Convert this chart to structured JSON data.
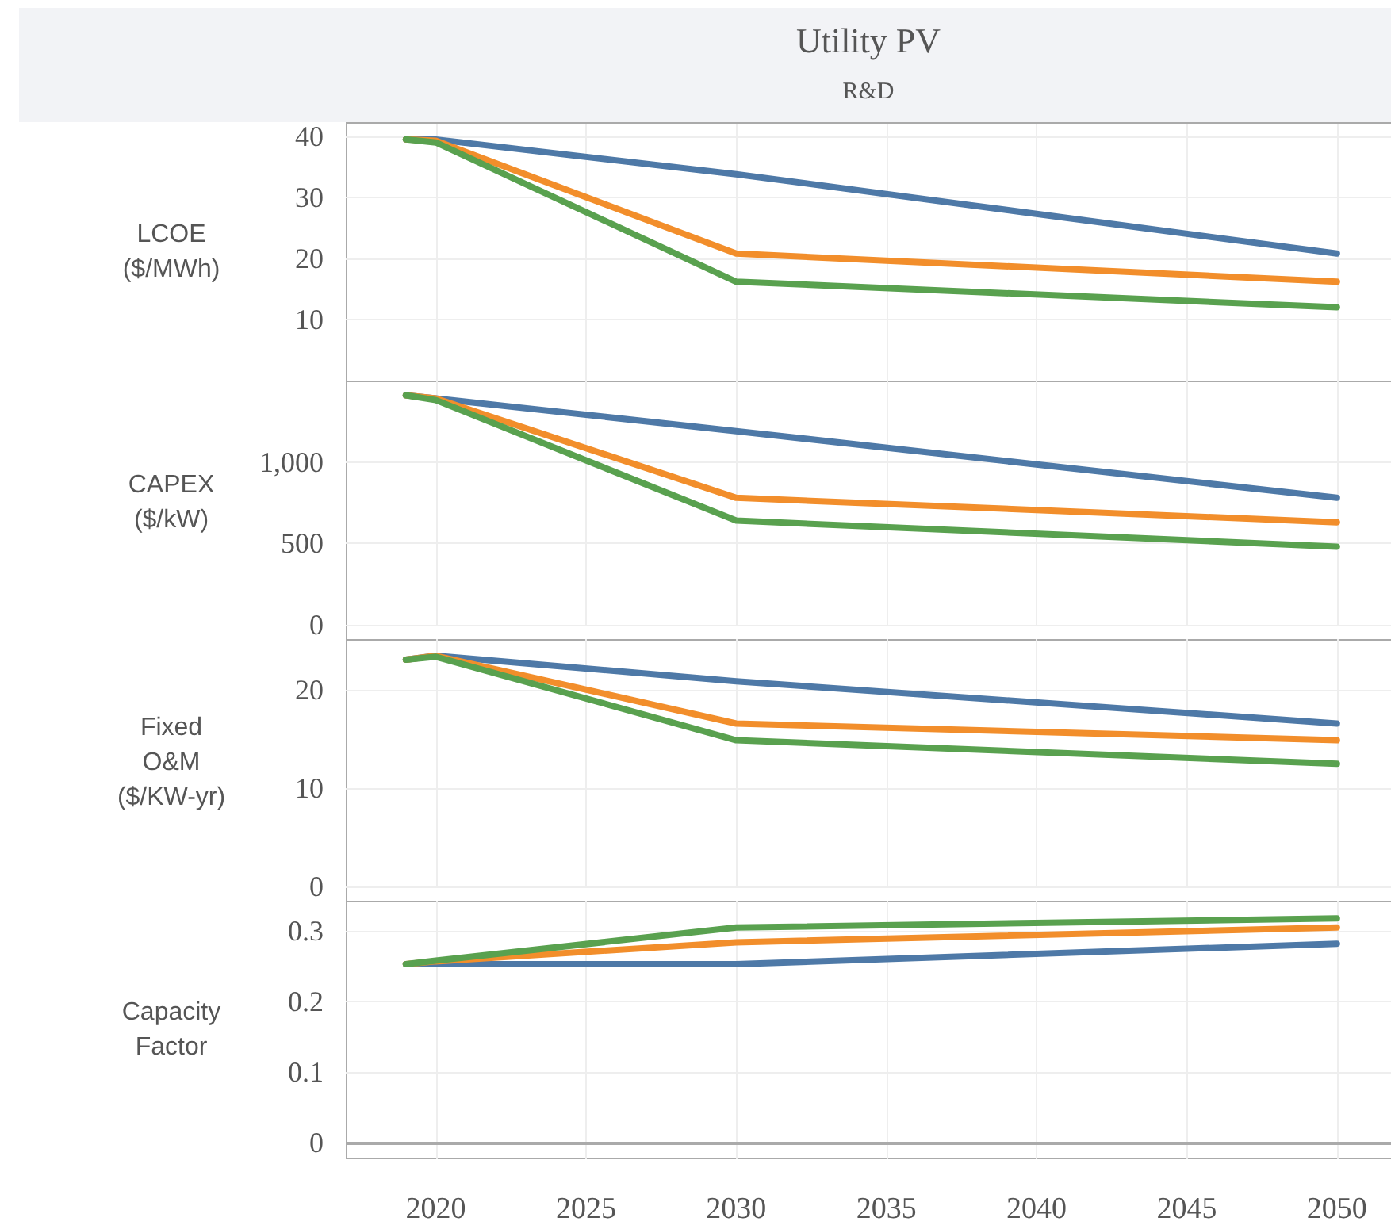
{
  "chart_data": [
    {
      "type": "line",
      "title": "Utility PV",
      "subtitle": "R&D",
      "ylabel": "LCOE\n($/MWh)",
      "x": [
        2019,
        2020,
        2030,
        2050
      ],
      "xlim": [
        2017,
        2051.8
      ],
      "xticks": [
        2020,
        2025,
        2030,
        2035,
        2040,
        2045,
        2050
      ],
      "ylim": [
        0,
        42
      ],
      "yticks": [
        10,
        20,
        30,
        40
      ],
      "grid": true,
      "marker": "none",
      "line_style": "solid",
      "tick_labels": "y",
      "series": [
        {
          "color": "#4e79a7",
          "values": [
            39.5,
            39.5,
            33.8,
            20.8
          ]
        },
        {
          "color": "#f28e2b",
          "values": [
            39.5,
            39.3,
            20.8,
            16.2
          ]
        },
        {
          "color": "#59a14f",
          "values": [
            39.5,
            39,
            16.2,
            12
          ]
        }
      ]
    },
    {
      "type": "line",
      "ylabel": "CAPEX\n($/kW)",
      "x": [
        2019,
        2020,
        2030,
        2050
      ],
      "xlim": [
        2017,
        2051.8
      ],
      "xticks": [
        2020,
        2025,
        2030,
        2035,
        2040,
        2045,
        2050
      ],
      "ylim": [
        0,
        1500
      ],
      "yticks": [
        0,
        500,
        {
          "value": 1000,
          "label": "1,000"
        }
      ],
      "grid": true,
      "marker": "none",
      "line_style": "solid",
      "tick_labels": "y",
      "series": [
        {
          "color": "#4e79a7",
          "values": [
            1410,
            1390,
            1190,
            780
          ]
        },
        {
          "color": "#f28e2b",
          "values": [
            1410,
            1390,
            780,
            630
          ]
        },
        {
          "color": "#59a14f",
          "values": [
            1410,
            1380,
            640,
            480
          ]
        }
      ]
    },
    {
      "type": "line",
      "ylabel": "Fixed\nO&M\n($/KW-yr)",
      "x": [
        2019,
        2020,
        2030,
        2050
      ],
      "xlim": [
        2017,
        2051.8
      ],
      "xticks": [
        2020,
        2025,
        2030,
        2035,
        2040,
        2045,
        2050
      ],
      "ylim": [
        0,
        25.2
      ],
      "yticks": [
        0,
        10,
        20
      ],
      "grid": true,
      "marker": "none",
      "line_style": "solid",
      "tick_labels": "y",
      "series": [
        {
          "color": "#4e79a7",
          "values": [
            23.1,
            23.5,
            20.9,
            16.6
          ]
        },
        {
          "color": "#f28e2b",
          "values": [
            23.1,
            23.5,
            16.6,
            14.9
          ]
        },
        {
          "color": "#59a14f",
          "values": [
            23.1,
            23.4,
            14.9,
            12.5
          ]
        }
      ]
    },
    {
      "type": "line",
      "ylabel": "Capacity\nFactor",
      "x": [
        2019,
        2020,
        2030,
        2050
      ],
      "xlim": [
        2017,
        2051.8
      ],
      "xticks": [
        2020,
        2025,
        2030,
        2035,
        2040,
        2045,
        2050
      ],
      "ylim": [
        -0.024,
        0.343
      ],
      "yticks": [
        0,
        0.1,
        0.2,
        0.3
      ],
      "grid": true,
      "marker": "none",
      "line_style": "solid",
      "series": [
        {
          "color": "#4e79a7",
          "values": [
            0.253,
            0.253,
            0.253,
            0.282
          ]
        },
        {
          "color": "#f28e2b",
          "values": [
            0.253,
            0.257,
            0.284,
            0.305
          ]
        },
        {
          "color": "#59a14f",
          "values": [
            0.253,
            0.258,
            0.305,
            0.318
          ]
        }
      ]
    }
  ]
}
